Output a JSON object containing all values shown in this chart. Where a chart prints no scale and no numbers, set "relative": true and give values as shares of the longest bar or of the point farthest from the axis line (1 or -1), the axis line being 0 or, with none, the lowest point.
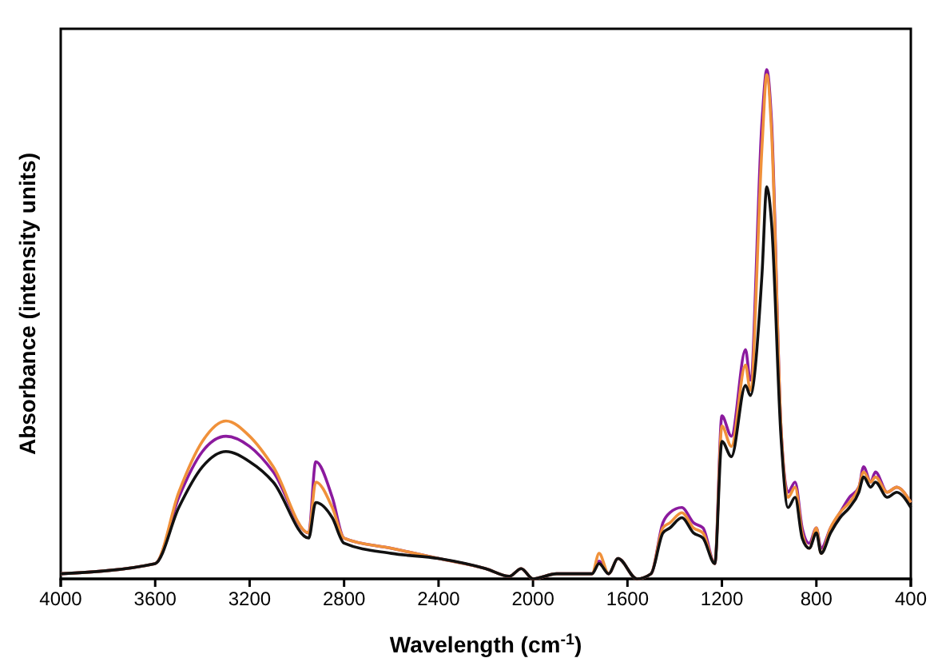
{
  "chart_data": {
    "type": "line",
    "relative": true,
    "xlabel": "Wavelength (cm$^{-1}$)",
    "ylabel": "Absorbance (intensity units)",
    "xlim": [
      4000,
      400
    ],
    "xticks": [
      4000,
      3600,
      3200,
      2800,
      2400,
      2000,
      1600,
      1200,
      800,
      400
    ],
    "marker": "none",
    "line_style": "solid",
    "x": [
      4000,
      3600,
      3500,
      3400,
      3300,
      3200,
      3100,
      2950,
      2920,
      2850,
      2800,
      2600,
      2400,
      2200,
      2100,
      2050,
      2000,
      1900,
      1750,
      1720,
      1680,
      1640,
      1560,
      1500,
      1450,
      1420,
      1370,
      1320,
      1280,
      1230,
      1200,
      1160,
      1100,
      1080,
      1030,
      1010,
      990,
      950,
      920,
      890,
      860,
      830,
      800,
      780,
      740,
      700,
      660,
      620,
      600,
      570,
      550,
      500,
      460,
      400
    ],
    "series": [
      {
        "color": "#8b1a9e",
        "values": [
          0.01,
          0.03,
          0.16,
          0.25,
          0.28,
          0.26,
          0.21,
          0.09,
          0.23,
          0.16,
          0.08,
          0.06,
          0.04,
          0.02,
          0.005,
          0.02,
          0.0,
          0.01,
          0.01,
          0.035,
          0.01,
          0.04,
          0.0,
          0.01,
          0.11,
          0.13,
          0.14,
          0.11,
          0.1,
          0.03,
          0.32,
          0.28,
          0.45,
          0.39,
          0.9,
          1.0,
          0.9,
          0.3,
          0.17,
          0.19,
          0.1,
          0.07,
          0.1,
          0.06,
          0.1,
          0.13,
          0.16,
          0.18,
          0.22,
          0.19,
          0.21,
          0.17,
          0.18,
          0.15
        ]
      },
      {
        "color": "#f0913a",
        "values": [
          0.01,
          0.03,
          0.17,
          0.27,
          0.31,
          0.28,
          0.22,
          0.09,
          0.19,
          0.14,
          0.08,
          0.06,
          0.04,
          0.02,
          0.005,
          0.02,
          0.0,
          0.01,
          0.01,
          0.05,
          0.01,
          0.04,
          0.0,
          0.01,
          0.1,
          0.11,
          0.13,
          0.1,
          0.09,
          0.03,
          0.3,
          0.26,
          0.42,
          0.37,
          0.85,
          0.99,
          0.88,
          0.3,
          0.16,
          0.18,
          0.09,
          0.06,
          0.1,
          0.05,
          0.1,
          0.13,
          0.15,
          0.18,
          0.21,
          0.19,
          0.2,
          0.17,
          0.18,
          0.15
        ]
      },
      {
        "color": "#111111",
        "values": [
          0.01,
          0.03,
          0.14,
          0.22,
          0.25,
          0.23,
          0.19,
          0.08,
          0.15,
          0.12,
          0.07,
          0.05,
          0.04,
          0.02,
          0.005,
          0.02,
          0.0,
          0.01,
          0.01,
          0.03,
          0.01,
          0.04,
          0.0,
          0.01,
          0.09,
          0.1,
          0.12,
          0.09,
          0.08,
          0.03,
          0.27,
          0.24,
          0.38,
          0.36,
          0.6,
          0.77,
          0.7,
          0.28,
          0.14,
          0.16,
          0.08,
          0.06,
          0.09,
          0.05,
          0.09,
          0.12,
          0.14,
          0.17,
          0.2,
          0.18,
          0.19,
          0.16,
          0.17,
          0.14
        ]
      }
    ]
  }
}
